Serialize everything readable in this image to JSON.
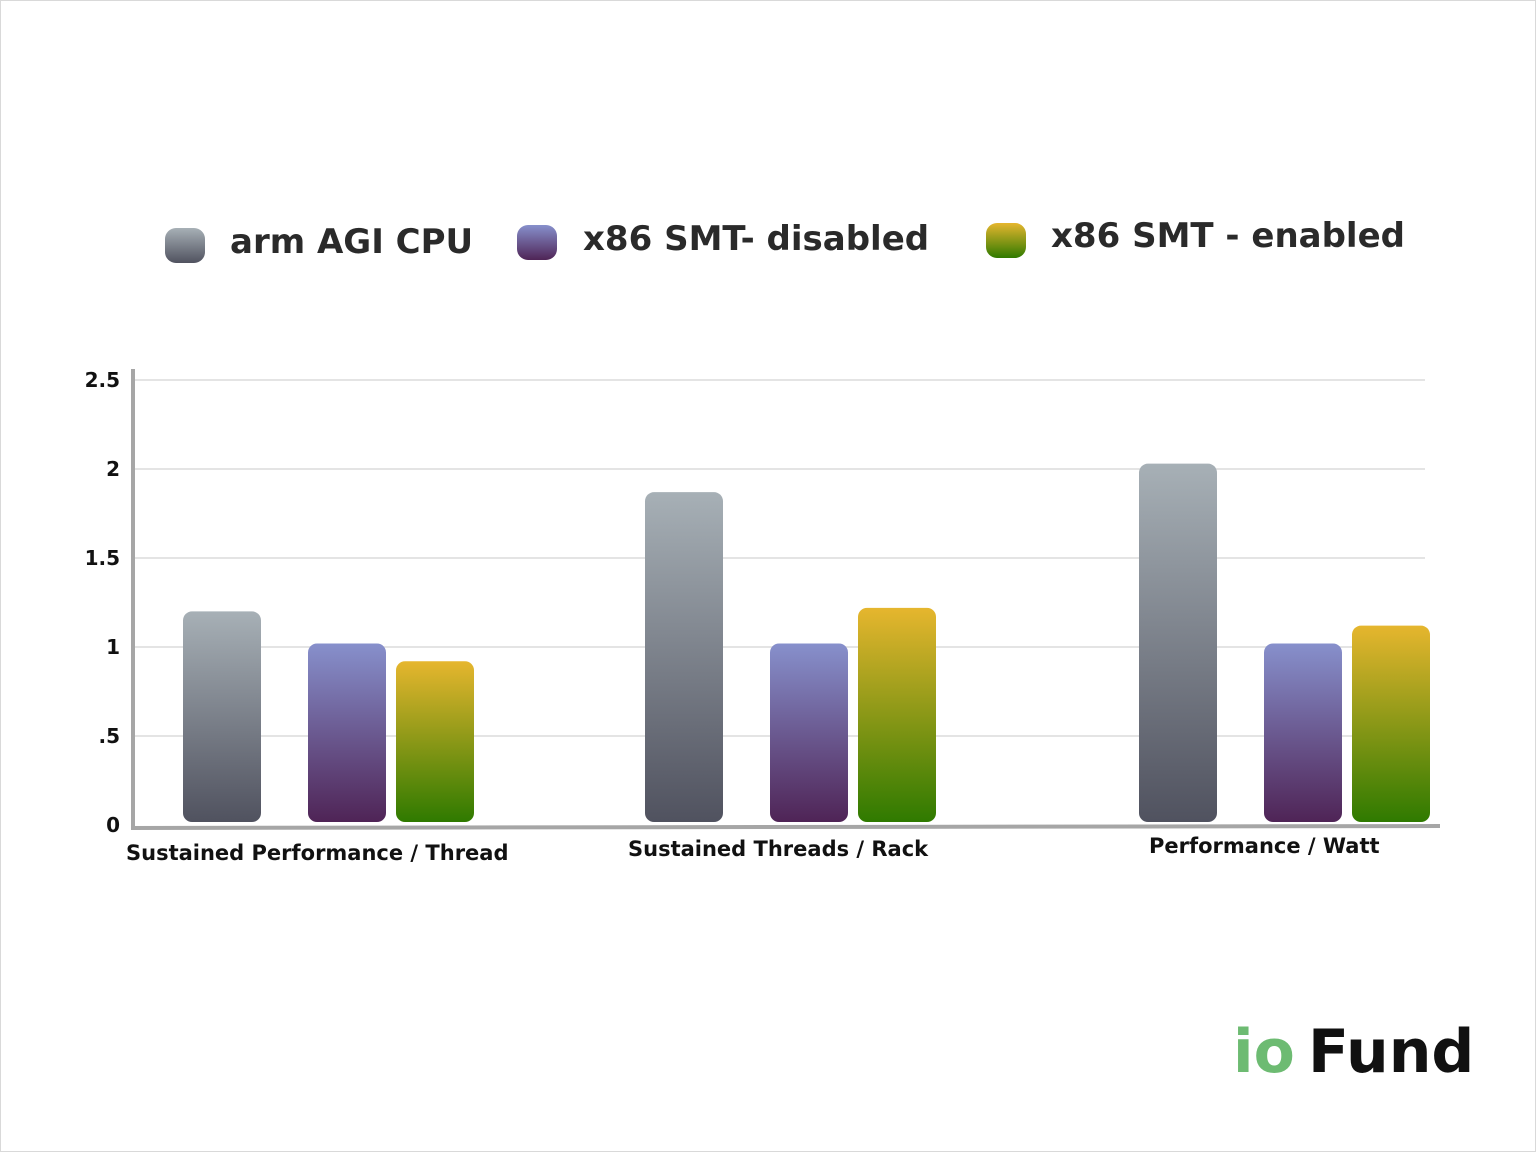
{
  "chart_data": {
    "type": "bar",
    "categories": [
      "Sustained Performance / Thread",
      "Sustained Threads / Rack",
      "Performance / Watt"
    ],
    "series": [
      {
        "name": "arm AGI CPU",
        "values": [
          1.2,
          1.87,
          2.03
        ],
        "color_top": "#a7b0b6",
        "color_bottom": "#50525f"
      },
      {
        "name": "x86 SMT- disabled",
        "values": [
          1.02,
          1.02,
          1.02
        ],
        "color_top": "#8790cc",
        "color_bottom": "#4f2456"
      },
      {
        "name": "x86 SMT - enabled",
        "values": [
          0.92,
          1.22,
          1.12
        ],
        "color_top": "#e6b62e",
        "color_bottom": "#2f7a00"
      }
    ],
    "yticks": [
      {
        "value": 0,
        "label": "0"
      },
      {
        "value": 0.5,
        "label": ".5"
      },
      {
        "value": 1,
        "label": "1"
      },
      {
        "value": 1.5,
        "label": "1.5"
      },
      {
        "value": 2,
        "label": "2"
      },
      {
        "value": 2.5,
        "label": "2.5"
      }
    ],
    "ylim": [
      0,
      2.5
    ],
    "grid": true,
    "legend_position": "top",
    "title": "",
    "xlabel": "",
    "ylabel": ""
  },
  "logo": {
    "io_text": "io",
    "fund_text": "Fund",
    "io_color": "#6dbb72",
    "fund_color": "#111111"
  }
}
